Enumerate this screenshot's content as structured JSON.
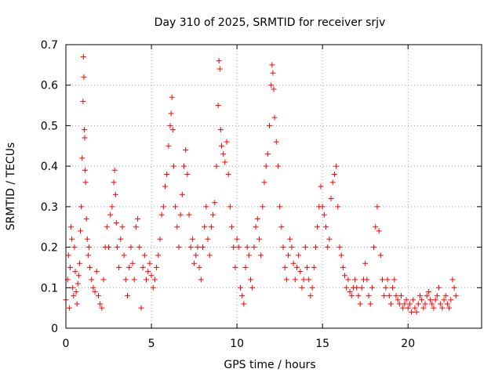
{
  "chart_data": {
    "type": "scatter",
    "title": "Day 310 of 2025, SRMTID for receiver srjv",
    "xlabel": "GPS time / hours",
    "ylabel": "SRMTID / TECUs",
    "xlim": [
      0,
      24.3
    ],
    "ylim": [
      0,
      0.7
    ],
    "x_ticks": [
      0,
      5,
      10,
      15,
      20
    ],
    "x_tick_labels": [
      "0",
      "5",
      "10",
      "15",
      "20"
    ],
    "y_ticks": [
      0,
      0.1,
      0.2,
      0.3,
      0.4,
      0.5,
      0.6,
      0.7
    ],
    "y_tick_labels": [
      "0",
      "0.1",
      "0.2",
      "0.3",
      "0.4",
      "0.5",
      "0.6",
      "0.7"
    ],
    "grid": true,
    "marker": "+",
    "marker_color": "#ff0000",
    "series": [
      {
        "name": "SRMTID",
        "x_range": [
          0,
          22.8
        ],
        "points": [
          [
            0.0,
            0.07
          ],
          [
            0.1,
            0.12
          ],
          [
            0.15,
            0.18
          ],
          [
            0.2,
            0.05
          ],
          [
            0.25,
            0.15
          ],
          [
            0.3,
            0.25
          ],
          [
            0.35,
            0.22
          ],
          [
            0.4,
            0.1
          ],
          [
            0.45,
            0.08
          ],
          [
            0.5,
            0.2
          ],
          [
            0.55,
            0.14
          ],
          [
            0.6,
            0.09
          ],
          [
            0.65,
            0.06
          ],
          [
            0.7,
            0.11
          ],
          [
            0.75,
            0.13
          ],
          [
            0.8,
            0.16
          ],
          [
            0.85,
            0.24
          ],
          [
            0.9,
            0.3
          ],
          [
            0.95,
            0.42
          ],
          [
            1.0,
            0.56
          ],
          [
            1.02,
            0.67
          ],
          [
            1.05,
            0.62
          ],
          [
            1.08,
            0.49
          ],
          [
            1.1,
            0.47
          ],
          [
            1.12,
            0.39
          ],
          [
            1.15,
            0.36
          ],
          [
            1.2,
            0.27
          ],
          [
            1.25,
            0.22
          ],
          [
            1.3,
            0.18
          ],
          [
            1.35,
            0.2
          ],
          [
            1.4,
            0.15
          ],
          [
            1.5,
            0.12
          ],
          [
            1.6,
            0.1
          ],
          [
            1.7,
            0.09
          ],
          [
            1.8,
            0.14
          ],
          [
            1.9,
            0.08
          ],
          [
            2.0,
            0.06
          ],
          [
            2.1,
            0.05
          ],
          [
            2.2,
            0.12
          ],
          [
            2.3,
            0.2
          ],
          [
            2.4,
            0.25
          ],
          [
            2.5,
            0.2
          ],
          [
            2.6,
            0.28
          ],
          [
            2.7,
            0.3
          ],
          [
            2.8,
            0.36
          ],
          [
            2.85,
            0.39
          ],
          [
            2.9,
            0.33
          ],
          [
            2.95,
            0.26
          ],
          [
            3.0,
            0.2
          ],
          [
            3.1,
            0.15
          ],
          [
            3.2,
            0.22
          ],
          [
            3.3,
            0.25
          ],
          [
            3.4,
            0.18
          ],
          [
            3.5,
            0.12
          ],
          [
            3.6,
            0.08
          ],
          [
            3.7,
            0.15
          ],
          [
            3.8,
            0.2
          ],
          [
            3.9,
            0.16
          ],
          [
            4.0,
            0.12
          ],
          [
            4.1,
            0.25
          ],
          [
            4.2,
            0.27
          ],
          [
            4.3,
            0.2
          ],
          [
            4.4,
            0.05
          ],
          [
            4.5,
            0.15
          ],
          [
            4.6,
            0.18
          ],
          [
            4.7,
            0.12
          ],
          [
            4.8,
            0.14
          ],
          [
            4.9,
            0.16
          ],
          [
            5.0,
            0.13
          ],
          [
            5.1,
            0.1
          ],
          [
            5.2,
            0.12
          ],
          [
            5.3,
            0.15
          ],
          [
            5.4,
            0.18
          ],
          [
            5.5,
            0.22
          ],
          [
            5.6,
            0.28
          ],
          [
            5.7,
            0.3
          ],
          [
            5.8,
            0.35
          ],
          [
            5.9,
            0.38
          ],
          [
            6.0,
            0.45
          ],
          [
            6.1,
            0.5
          ],
          [
            6.15,
            0.53
          ],
          [
            6.2,
            0.57
          ],
          [
            6.25,
            0.49
          ],
          [
            6.3,
            0.4
          ],
          [
            6.4,
            0.3
          ],
          [
            6.5,
            0.25
          ],
          [
            6.6,
            0.2
          ],
          [
            6.7,
            0.28
          ],
          [
            6.8,
            0.33
          ],
          [
            6.9,
            0.4
          ],
          [
            7.0,
            0.44
          ],
          [
            7.1,
            0.38
          ],
          [
            7.2,
            0.28
          ],
          [
            7.3,
            0.2
          ],
          [
            7.4,
            0.22
          ],
          [
            7.5,
            0.16
          ],
          [
            7.6,
            0.18
          ],
          [
            7.7,
            0.2
          ],
          [
            7.8,
            0.15
          ],
          [
            7.9,
            0.12
          ],
          [
            8.0,
            0.2
          ],
          [
            8.1,
            0.25
          ],
          [
            8.2,
            0.3
          ],
          [
            8.3,
            0.22
          ],
          [
            8.4,
            0.18
          ],
          [
            8.5,
            0.25
          ],
          [
            8.6,
            0.28
          ],
          [
            8.7,
            0.31
          ],
          [
            8.8,
            0.4
          ],
          [
            8.9,
            0.55
          ],
          [
            8.95,
            0.66
          ],
          [
            9.0,
            0.64
          ],
          [
            9.05,
            0.49
          ],
          [
            9.1,
            0.45
          ],
          [
            9.2,
            0.43
          ],
          [
            9.3,
            0.41
          ],
          [
            9.4,
            0.46
          ],
          [
            9.5,
            0.38
          ],
          [
            9.6,
            0.3
          ],
          [
            9.7,
            0.25
          ],
          [
            9.8,
            0.2
          ],
          [
            9.9,
            0.15
          ],
          [
            10.0,
            0.22
          ],
          [
            10.1,
            0.2
          ],
          [
            10.2,
            0.1
          ],
          [
            10.3,
            0.08
          ],
          [
            10.4,
            0.06
          ],
          [
            10.5,
            0.15
          ],
          [
            10.6,
            0.2
          ],
          [
            10.7,
            0.18
          ],
          [
            10.8,
            0.12
          ],
          [
            10.9,
            0.1
          ],
          [
            11.0,
            0.2
          ],
          [
            11.1,
            0.25
          ],
          [
            11.2,
            0.27
          ],
          [
            11.3,
            0.22
          ],
          [
            11.4,
            0.18
          ],
          [
            11.5,
            0.3
          ],
          [
            11.6,
            0.36
          ],
          [
            11.7,
            0.4
          ],
          [
            11.8,
            0.43
          ],
          [
            11.9,
            0.5
          ],
          [
            12.0,
            0.6
          ],
          [
            12.05,
            0.65
          ],
          [
            12.1,
            0.63
          ],
          [
            12.15,
            0.59
          ],
          [
            12.2,
            0.52
          ],
          [
            12.3,
            0.46
          ],
          [
            12.4,
            0.4
          ],
          [
            12.5,
            0.3
          ],
          [
            12.6,
            0.25
          ],
          [
            12.7,
            0.2
          ],
          [
            12.8,
            0.15
          ],
          [
            12.9,
            0.12
          ],
          [
            13.0,
            0.18
          ],
          [
            13.1,
            0.22
          ],
          [
            13.2,
            0.2
          ],
          [
            13.3,
            0.16
          ],
          [
            13.4,
            0.12
          ],
          [
            13.5,
            0.15
          ],
          [
            13.6,
            0.18
          ],
          [
            13.7,
            0.14
          ],
          [
            13.8,
            0.1
          ],
          [
            13.9,
            0.12
          ],
          [
            14.0,
            0.2
          ],
          [
            14.1,
            0.15
          ],
          [
            14.2,
            0.12
          ],
          [
            14.3,
            0.08
          ],
          [
            14.4,
            0.1
          ],
          [
            14.5,
            0.15
          ],
          [
            14.6,
            0.2
          ],
          [
            14.7,
            0.25
          ],
          [
            14.8,
            0.3
          ],
          [
            14.9,
            0.35
          ],
          [
            15.0,
            0.3
          ],
          [
            15.1,
            0.28
          ],
          [
            15.2,
            0.25
          ],
          [
            15.3,
            0.2
          ],
          [
            15.4,
            0.22
          ],
          [
            15.5,
            0.32
          ],
          [
            15.6,
            0.36
          ],
          [
            15.7,
            0.38
          ],
          [
            15.8,
            0.4
          ],
          [
            15.9,
            0.3
          ],
          [
            16.0,
            0.2
          ],
          [
            16.1,
            0.18
          ],
          [
            16.2,
            0.15
          ],
          [
            16.3,
            0.13
          ],
          [
            16.4,
            0.1
          ],
          [
            16.5,
            0.12
          ],
          [
            16.6,
            0.09
          ],
          [
            16.7,
            0.08
          ],
          [
            16.8,
            0.1
          ],
          [
            16.9,
            0.12
          ],
          [
            17.0,
            0.1
          ],
          [
            17.1,
            0.08
          ],
          [
            17.2,
            0.06
          ],
          [
            17.3,
            0.1
          ],
          [
            17.4,
            0.12
          ],
          [
            17.5,
            0.16
          ],
          [
            17.6,
            0.12
          ],
          [
            17.7,
            0.08
          ],
          [
            17.8,
            0.06
          ],
          [
            17.9,
            0.1
          ],
          [
            18.0,
            0.2
          ],
          [
            18.1,
            0.25
          ],
          [
            18.2,
            0.3
          ],
          [
            18.3,
            0.24
          ],
          [
            18.4,
            0.18
          ],
          [
            18.5,
            0.12
          ],
          [
            18.6,
            0.08
          ],
          [
            18.7,
            0.1
          ],
          [
            18.8,
            0.12
          ],
          [
            18.9,
            0.08
          ],
          [
            19.0,
            0.06
          ],
          [
            19.1,
            0.1
          ],
          [
            19.2,
            0.12
          ],
          [
            19.3,
            0.08
          ],
          [
            19.4,
            0.07
          ],
          [
            19.5,
            0.06
          ],
          [
            19.6,
            0.08
          ],
          [
            19.7,
            0.05
          ],
          [
            19.8,
            0.06
          ],
          [
            19.9,
            0.07
          ],
          [
            20.0,
            0.05
          ],
          [
            20.1,
            0.06
          ],
          [
            20.2,
            0.04
          ],
          [
            20.3,
            0.07
          ],
          [
            20.4,
            0.05
          ],
          [
            20.5,
            0.04
          ],
          [
            20.6,
            0.06
          ],
          [
            20.7,
            0.08
          ],
          [
            20.8,
            0.07
          ],
          [
            20.9,
            0.05
          ],
          [
            21.0,
            0.06
          ],
          [
            21.1,
            0.08
          ],
          [
            21.2,
            0.09
          ],
          [
            21.3,
            0.07
          ],
          [
            21.4,
            0.06
          ],
          [
            21.5,
            0.05
          ],
          [
            21.6,
            0.07
          ],
          [
            21.7,
            0.08
          ],
          [
            21.8,
            0.1
          ],
          [
            21.9,
            0.06
          ],
          [
            22.0,
            0.05
          ],
          [
            22.1,
            0.07
          ],
          [
            22.2,
            0.08
          ],
          [
            22.3,
            0.06
          ],
          [
            22.4,
            0.05
          ],
          [
            22.5,
            0.07
          ],
          [
            22.6,
            0.12
          ],
          [
            22.7,
            0.1
          ],
          [
            22.8,
            0.08
          ]
        ]
      }
    ]
  }
}
